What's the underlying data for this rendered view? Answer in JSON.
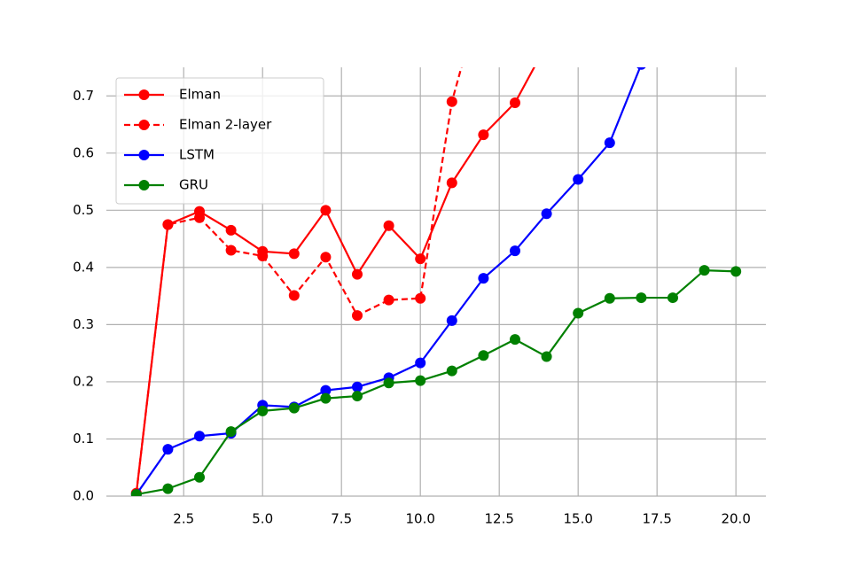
{
  "chart_data": {
    "type": "line",
    "x": [
      1,
      2,
      3,
      4,
      5,
      6,
      7,
      8,
      9,
      10,
      11,
      12,
      13,
      14,
      15,
      16,
      17,
      18,
      19,
      20
    ],
    "series": [
      {
        "name": "Elman",
        "color": "#ff0000",
        "linestyle": "solid",
        "values": [
          0.005,
          0.475,
          0.498,
          0.465,
          0.428,
          0.424,
          0.5,
          0.388,
          0.473,
          0.415,
          0.548,
          0.632,
          0.688,
          0.79,
          null,
          null,
          null,
          null,
          null,
          null
        ]
      },
      {
        "name": "Elman 2-layer",
        "color": "#ff0000",
        "linestyle": "dashed",
        "values": [
          0.005,
          0.475,
          0.487,
          0.43,
          0.42,
          0.351,
          0.418,
          0.316,
          0.343,
          0.346,
          0.69,
          0.89,
          null,
          null,
          null,
          null,
          null,
          null,
          null,
          null
        ]
      },
      {
        "name": "LSTM",
        "color": "#0000ff",
        "linestyle": "solid",
        "values": [
          0.003,
          0.082,
          0.105,
          0.11,
          0.159,
          0.156,
          0.185,
          0.191,
          0.207,
          0.233,
          0.307,
          0.381,
          0.429,
          0.494,
          0.554,
          0.618,
          0.755,
          null,
          null,
          null
        ]
      },
      {
        "name": "GRU",
        "color": "#008000",
        "linestyle": "solid",
        "values": [
          0.003,
          0.013,
          0.033,
          0.113,
          0.149,
          0.154,
          0.171,
          0.175,
          0.198,
          0.202,
          0.219,
          0.246,
          0.274,
          0.244,
          0.32,
          0.346,
          0.347,
          0.347,
          0.395,
          0.393
        ]
      }
    ],
    "xlim": [
      0.05,
      20.95
    ],
    "xticks": [
      2.5,
      {
        "value": 5,
        "label": "5.0"
      },
      7.5,
      {
        "value": 10,
        "label": "10.0"
      },
      12.5,
      {
        "value": 15,
        "label": "15.0"
      },
      17.5,
      {
        "value": 20,
        "label": "20.0"
      }
    ],
    "ylim": [
      0,
      0.75
    ],
    "yticks": [
      {
        "value": 0,
        "label": "0.0"
      },
      0.1,
      0.2,
      0.3,
      0.4,
      0.5,
      0.6,
      0.7
    ],
    "grid": true,
    "legend": "upper left"
  }
}
